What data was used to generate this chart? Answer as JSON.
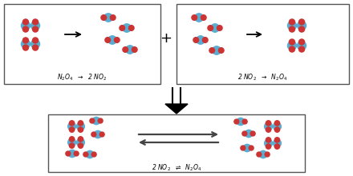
{
  "bg_color": "#ffffff",
  "box_color": "#555555",
  "blue": "#5aacd0",
  "red": "#cc3333",
  "top_left_label": "N$_2$O$_4$  $\\rightarrow$  2 NO$_2$",
  "top_right_label": "2 NO$_2$  $\\rightarrow$  N$_2$O$_4$",
  "bottom_label": "2 NO$_2$  $\\rightleftharpoons$  N$_2$O$_4$",
  "plus_symbol": "+",
  "fig_width": 4.4,
  "fig_height": 2.2,
  "dpi": 100
}
